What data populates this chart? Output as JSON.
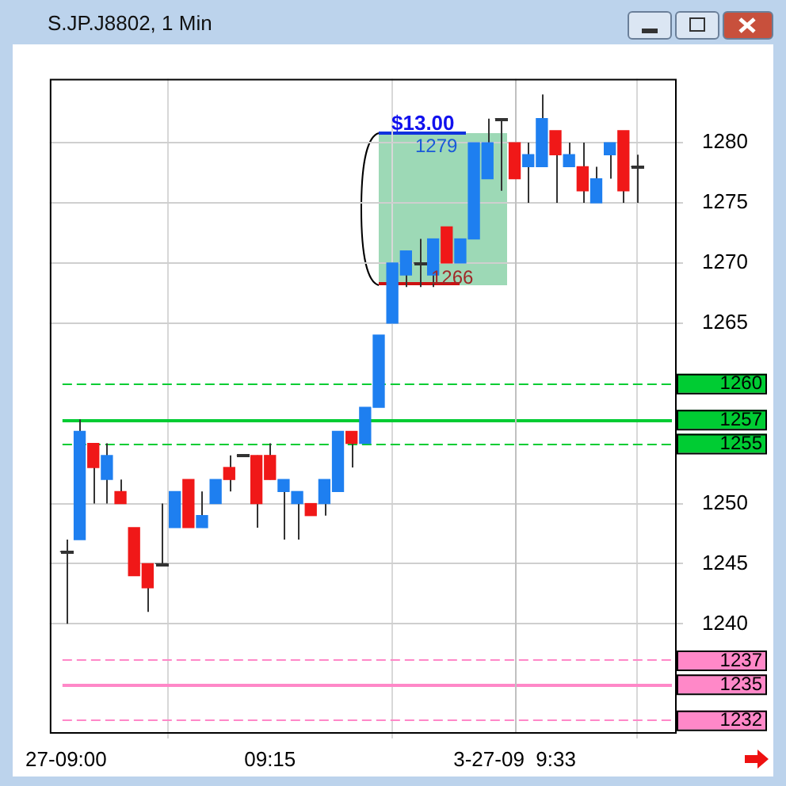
{
  "chart_data": {
    "type": "candlestick",
    "title": "S.JP.J8802, 1 Min",
    "categories": [
      "27-09:00",
      null,
      null,
      null,
      null,
      null,
      null,
      null,
      null,
      null,
      null,
      null,
      null,
      null,
      null,
      "09:15",
      null,
      null,
      null,
      null,
      null,
      null,
      null,
      null,
      null,
      null,
      null,
      null,
      null,
      null,
      null,
      null,
      null,
      "3-27-09  9:33",
      null,
      null,
      null,
      null,
      null,
      null,
      null,
      null,
      null
    ],
    "ohlc": [
      [
        1246,
        1247,
        1240,
        1246
      ],
      [
        1247,
        1257,
        1247,
        1256
      ],
      [
        1255,
        1255,
        1250,
        1253
      ],
      [
        1252,
        1255,
        1250,
        1254
      ],
      [
        1251,
        1252,
        1250,
        1250
      ],
      [
        1248,
        1248,
        1244,
        1244
      ],
      [
        1245,
        1245,
        1241,
        1243
      ],
      [
        1245,
        1250,
        1245,
        1245
      ],
      [
        1248,
        1251,
        1248,
        1251
      ],
      [
        1252,
        1252,
        1248,
        1248
      ],
      [
        1248,
        1251,
        1248,
        1249
      ],
      [
        1250,
        1252,
        1250,
        1252
      ],
      [
        1253,
        1254,
        1251,
        1252
      ],
      [
        1254,
        1254,
        1254,
        1254
      ],
      [
        1254,
        1254,
        1248,
        1250
      ],
      [
        1254,
        1255,
        1252,
        1252
      ],
      [
        1251,
        1252,
        1247,
        1252
      ],
      [
        1250,
        1251,
        1247,
        1251
      ],
      [
        1250,
        1250,
        1249,
        1249
      ],
      [
        1250,
        1252,
        1249,
        1252
      ],
      [
        1251,
        1256,
        1251,
        1256
      ],
      [
        1256,
        1256,
        1253,
        1255
      ],
      [
        1255,
        1258,
        1255,
        1258
      ],
      [
        1258,
        1264,
        1258,
        1264
      ],
      [
        1265,
        1270,
        1265,
        1270
      ],
      [
        1269,
        1271,
        1268,
        1271
      ],
      [
        1270,
        1272,
        1268,
        1270
      ],
      [
        1269,
        1272,
        1268,
        1272
      ],
      [
        1273,
        1273,
        1270,
        1270
      ],
      [
        1270,
        1272,
        1270,
        1272
      ],
      [
        1272,
        1280,
        1272,
        1280
      ],
      [
        1277,
        1282,
        1277,
        1280
      ],
      [
        1282,
        1282,
        1276,
        1282
      ],
      [
        1280,
        1280,
        1277,
        1277
      ],
      [
        1278,
        1280,
        1275,
        1279
      ],
      [
        1278,
        1284,
        1278,
        1282
      ],
      [
        1281,
        1281,
        1275,
        1279
      ],
      [
        1278,
        1280,
        1278,
        1279
      ],
      [
        1278,
        1280,
        1275,
        1276
      ],
      [
        1275,
        1278,
        1275,
        1277
      ],
      [
        1279,
        1280,
        1277,
        1280
      ],
      [
        1281,
        1281,
        1275,
        1276
      ],
      [
        1278,
        1279,
        1275,
        1278
      ]
    ],
    "colors": [
      "#333333",
      "#1e7ff0",
      "#f01818",
      "#1e7ff0",
      "#f01818",
      "#f01818",
      "#f01818",
      "#333333",
      "#1e7ff0",
      "#f01818",
      "#1e7ff0",
      "#1e7ff0",
      "#f01818",
      "#333333",
      "#f01818",
      "#f01818",
      "#1e7ff0",
      "#1e7ff0",
      "#f01818",
      "#1e7ff0",
      "#1e7ff0",
      "#f01818",
      "#1e7ff0",
      "#1e7ff0",
      "#1e7ff0",
      "#1e7ff0",
      "#333333",
      "#1e7ff0",
      "#f01818",
      "#1e7ff0",
      "#1e7ff0",
      "#1e7ff0",
      "#333333",
      "#f01818",
      "#1e7ff0",
      "#1e7ff0",
      "#f01818",
      "#1e7ff0",
      "#f01818",
      "#1e7ff0",
      "#1e7ff0",
      "#f01818",
      "#333333"
    ],
    "ylim": [
      1231,
      1285.3
    ],
    "yticks": [
      1240,
      1245,
      1250,
      1265,
      1270,
      1275,
      1280
    ],
    "ref_lines": [
      {
        "axis": "y",
        "value": 1260,
        "label": "1260",
        "color": "#00cc33",
        "line_style": "dashed"
      },
      {
        "axis": "y",
        "value": 1257,
        "label": "1257",
        "color": "#00cc33",
        "line_style": "solid"
      },
      {
        "axis": "y",
        "value": 1255,
        "label": "1255",
        "color": "#00cc33",
        "line_style": "dashed"
      },
      {
        "axis": "y",
        "value": 1237,
        "label": "1237",
        "color": "#ff88c8",
        "line_style": "dashed"
      },
      {
        "axis": "y",
        "value": 1235,
        "label": "1235",
        "color": "#ff88c8",
        "line_style": "solid"
      },
      {
        "axis": "y",
        "value": 1232,
        "label": "1232",
        "color": "#ff88c8",
        "line_style": "dashed"
      },
      {
        "axis": "x",
        "value": "3-27-09  9:33",
        "color": "#c0c0c0"
      }
    ],
    "annotations": [
      "$13.00",
      "1279",
      "1266"
    ],
    "grid": true,
    "legend": false
  }
}
